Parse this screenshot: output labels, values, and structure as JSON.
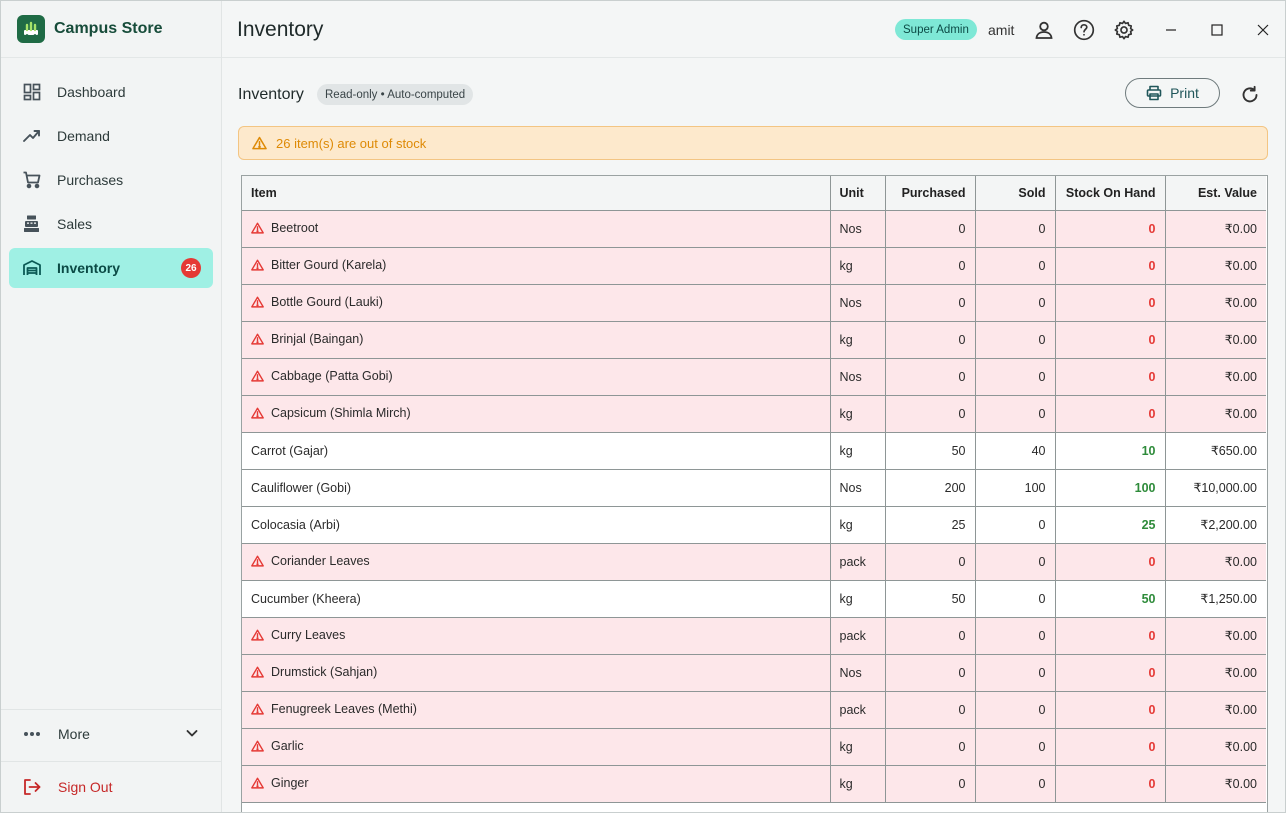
{
  "app": {
    "name": "Campus Store"
  },
  "header": {
    "title": "Inventory",
    "role": "Super Admin",
    "user": "amit"
  },
  "sidebar": {
    "items": [
      {
        "label": "Dashboard",
        "icon": "dashboard-icon"
      },
      {
        "label": "Demand",
        "icon": "trending-up-icon"
      },
      {
        "label": "Purchases",
        "icon": "cart-icon"
      },
      {
        "label": "Sales",
        "icon": "cash-register-icon"
      },
      {
        "label": "Inventory",
        "icon": "warehouse-icon",
        "badge": "26",
        "active": true
      }
    ],
    "more_label": "More",
    "signout_label": "Sign Out"
  },
  "section": {
    "title": "Inventory",
    "chip": "Read-only • Auto-computed",
    "print_label": "Print"
  },
  "alert": {
    "text": "26 item(s) are out of stock"
  },
  "colors": {
    "accent": "#9ff0e4",
    "brand": "#1f6b45",
    "danger": "#e53935",
    "success": "#2e8b3a",
    "warning_bg": "#fde9cc"
  },
  "table": {
    "columns": [
      "Item",
      "Unit",
      "Purchased",
      "Sold",
      "Stock On Hand",
      "Est. Value"
    ],
    "rows": [
      {
        "item": "Beetroot",
        "unit": "Nos",
        "purchased": "0",
        "sold": "0",
        "stock": "0",
        "value": "₹0.00",
        "out": true
      },
      {
        "item": "Bitter Gourd (Karela)",
        "unit": "kg",
        "purchased": "0",
        "sold": "0",
        "stock": "0",
        "value": "₹0.00",
        "out": true
      },
      {
        "item": "Bottle Gourd (Lauki)",
        "unit": "Nos",
        "purchased": "0",
        "sold": "0",
        "stock": "0",
        "value": "₹0.00",
        "out": true
      },
      {
        "item": "Brinjal (Baingan)",
        "unit": "kg",
        "purchased": "0",
        "sold": "0",
        "stock": "0",
        "value": "₹0.00",
        "out": true
      },
      {
        "item": "Cabbage (Patta Gobi)",
        "unit": "Nos",
        "purchased": "0",
        "sold": "0",
        "stock": "0",
        "value": "₹0.00",
        "out": true
      },
      {
        "item": "Capsicum (Shimla Mirch)",
        "unit": "kg",
        "purchased": "0",
        "sold": "0",
        "stock": "0",
        "value": "₹0.00",
        "out": true
      },
      {
        "item": "Carrot (Gajar)",
        "unit": "kg",
        "purchased": "50",
        "sold": "40",
        "stock": "10",
        "value": "₹650.00",
        "out": false
      },
      {
        "item": "Cauliflower (Gobi)",
        "unit": "Nos",
        "purchased": "200",
        "sold": "100",
        "stock": "100",
        "value": "₹10,000.00",
        "out": false
      },
      {
        "item": "Colocasia (Arbi)",
        "unit": "kg",
        "purchased": "25",
        "sold": "0",
        "stock": "25",
        "value": "₹2,200.00",
        "out": false
      },
      {
        "item": "Coriander Leaves",
        "unit": "pack",
        "purchased": "0",
        "sold": "0",
        "stock": "0",
        "value": "₹0.00",
        "out": true
      },
      {
        "item": "Cucumber (Kheera)",
        "unit": "kg",
        "purchased": "50",
        "sold": "0",
        "stock": "50",
        "value": "₹1,250.00",
        "out": false
      },
      {
        "item": "Curry Leaves",
        "unit": "pack",
        "purchased": "0",
        "sold": "0",
        "stock": "0",
        "value": "₹0.00",
        "out": true
      },
      {
        "item": "Drumstick (Sahjan)",
        "unit": "Nos",
        "purchased": "0",
        "sold": "0",
        "stock": "0",
        "value": "₹0.00",
        "out": true
      },
      {
        "item": "Fenugreek Leaves (Methi)",
        "unit": "pack",
        "purchased": "0",
        "sold": "0",
        "stock": "0",
        "value": "₹0.00",
        "out": true
      },
      {
        "item": "Garlic",
        "unit": "kg",
        "purchased": "0",
        "sold": "0",
        "stock": "0",
        "value": "₹0.00",
        "out": true
      },
      {
        "item": "Ginger",
        "unit": "kg",
        "purchased": "0",
        "sold": "0",
        "stock": "0",
        "value": "₹0.00",
        "out": true
      }
    ]
  }
}
